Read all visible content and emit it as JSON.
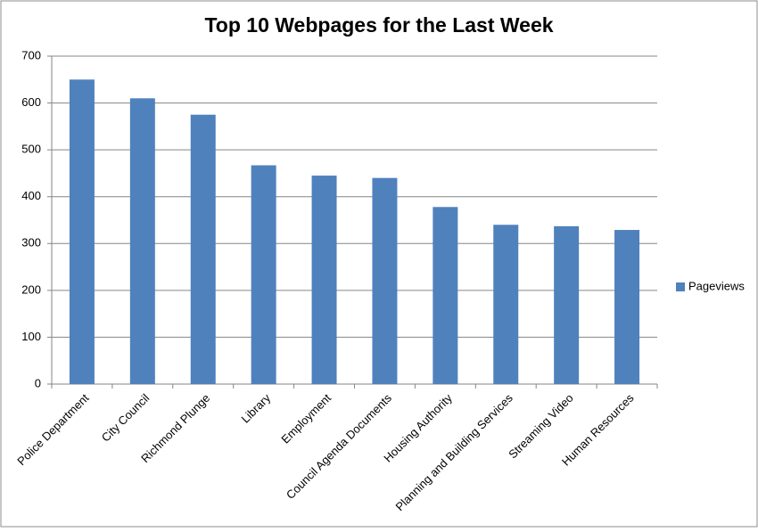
{
  "chart_data": {
    "type": "bar",
    "title": "Top 10 Webpages for the Last Week",
    "categories": [
      "Police Department",
      "City Council",
      "Richmond Plunge",
      "Library",
      "Employment",
      "Council Agenda Documents",
      "Housing Authority",
      "Planning and Building Services",
      "Streaming Video",
      "Human Resources"
    ],
    "series": [
      {
        "name": "Pageviews",
        "color": "#4f81bd",
        "values": [
          650,
          610,
          575,
          467,
          445,
          440,
          378,
          340,
          337,
          329
        ]
      }
    ],
    "ylim": [
      0,
      700
    ],
    "yticks": [
      0,
      100,
      200,
      300,
      400,
      500,
      600,
      700
    ],
    "grid": true,
    "legend": "right"
  }
}
